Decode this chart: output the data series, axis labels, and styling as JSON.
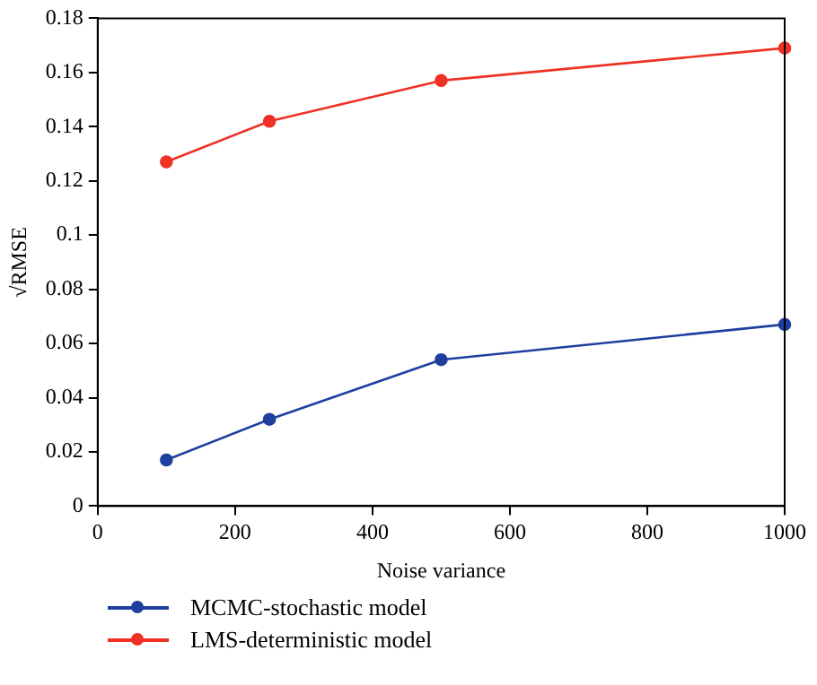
{
  "chart_data": {
    "type": "line",
    "xlabel": "Noise variance",
    "ylabel": "√RMSE",
    "x": [
      100,
      250,
      500,
      1000
    ],
    "series": [
      {
        "name": "MCMC-stochastic model",
        "color": "#1f3f9f",
        "values": [
          0.017,
          0.032,
          0.054,
          0.067
        ]
      },
      {
        "name": "LMS-deterministic model",
        "color": "#ee3124",
        "values": [
          0.127,
          0.142,
          0.157,
          0.169
        ]
      }
    ],
    "xlim": [
      0,
      1000
    ],
    "xticks": [
      0,
      200,
      400,
      600,
      800,
      1000
    ],
    "ylim": [
      0,
      0.18
    ],
    "yticks": [
      0,
      0.02,
      0.04,
      0.06,
      0.08,
      0.1,
      0.12,
      0.14,
      0.16,
      0.18
    ],
    "grid": false,
    "legend": "bottom",
    "marker": "circle",
    "line_style": "solid"
  }
}
